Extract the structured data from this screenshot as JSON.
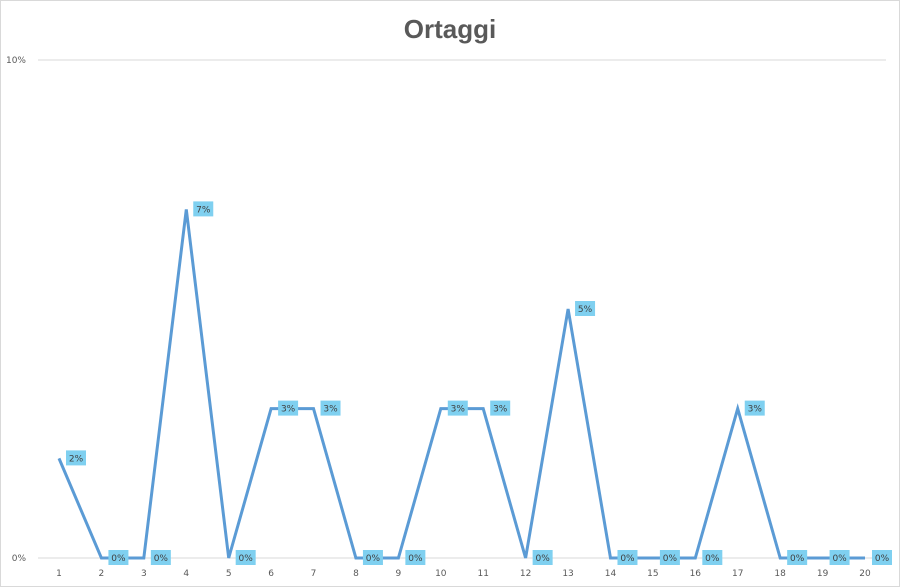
{
  "chart_data": {
    "type": "line",
    "title": "Ortaggi",
    "xlabel": "",
    "ylabel": "",
    "categories": [
      "1",
      "2",
      "3",
      "4",
      "5",
      "6",
      "7",
      "8",
      "9",
      "10",
      "11",
      "12",
      "13",
      "14",
      "15",
      "16",
      "17",
      "18",
      "19",
      "20"
    ],
    "values": [
      2,
      0,
      0,
      7,
      0,
      3,
      3,
      0,
      0,
      3,
      3,
      0,
      5,
      0,
      0,
      0,
      3,
      0,
      0,
      0
    ],
    "data_labels": [
      "2%",
      "0%",
      "0%",
      "7%",
      "0%",
      "3%",
      "3%",
      "0%",
      "0%",
      "3%",
      "3%",
      "0%",
      "5%",
      "0%",
      "0%",
      "0%",
      "3%",
      "0%",
      "0%",
      "0%"
    ],
    "y_ticks": [
      {
        "value": 0,
        "label": "0%"
      },
      {
        "value": 10,
        "label": "10%"
      }
    ],
    "ylim": [
      0,
      10
    ],
    "grid": true,
    "legend": "none",
    "colors": {
      "line": "#5b9bd5",
      "label_bg": "#7fd0f0",
      "grid": "#d9d9d9",
      "text": "#595959"
    }
  }
}
